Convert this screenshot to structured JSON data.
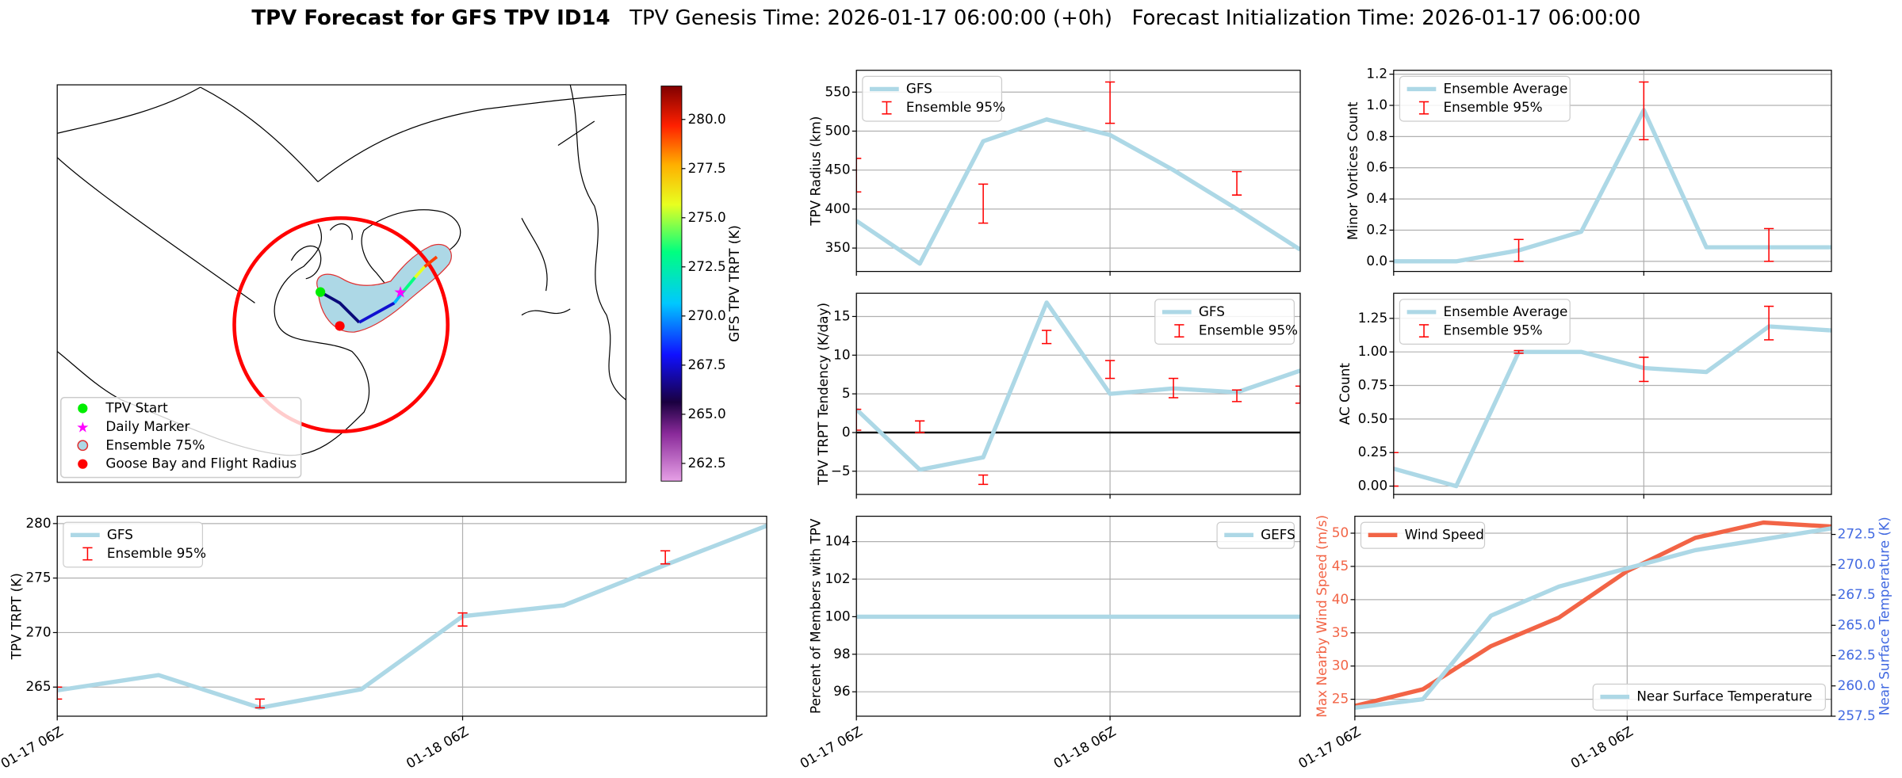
{
  "title": "TPV Forecast for GFS TPV ID14",
  "genesis_time": "TPV Genesis Time: 2026-01-17 06:00:00 (+0h)",
  "init_time": "Forecast Initialization Time: 2026-01-17 06:00:00",
  "chart_data": [
    {
      "type": "map",
      "colorbar_label": "GFS TPV TRPT (K)",
      "clim": [
        261.6,
        281.7
      ],
      "cticks": [
        262.5,
        {
          "value": 265,
          "label": "265.0"
        },
        267.5,
        {
          "value": 270,
          "label": "270.0"
        },
        272.5,
        {
          "value": 275,
          "label": "275.0"
        },
        277.5,
        {
          "value": 280,
          "label": "280.0"
        }
      ],
      "legend": "lower left",
      "legend_entries": [
        {
          "name": "TPV Start",
          "marker": "circle",
          "color": "#00ee00"
        },
        {
          "name": "Daily Marker",
          "marker": "star",
          "color": "#ff00ff"
        },
        {
          "name": "Ensemble 75%",
          "marker": "circle",
          "color": "#add8e6",
          "edge": "#e03030"
        },
        {
          "name": "Goose Bay and Flight Radius",
          "marker": "circle",
          "color": "#ff0000"
        }
      ]
    },
    {
      "type": "line",
      "ylabel": "TPV Radius (km)",
      "x": [
        "01-17 06Z",
        "01-17 12Z",
        "01-17 18Z",
        "01-18 00Z",
        "01-18 06Z",
        "01-18 12Z",
        "01-18 18Z",
        "01-19 00Z"
      ],
      "xlim": [
        "01-17 06Z",
        "01-19 00Z"
      ],
      "xticks": [
        "01-17 06Z",
        "01-18 06Z"
      ],
      "xticklabels": false,
      "ylim": [
        320,
        578
      ],
      "yticks": [
        350,
        400,
        450,
        500,
        550
      ],
      "grid": true,
      "legend": "upper left",
      "series": [
        {
          "name": "GFS",
          "type": "line",
          "color": "#add8e6",
          "values": [
            385,
            330,
            487,
            515,
            495,
            450,
            400,
            348
          ]
        },
        {
          "name": "Ensemble 95%",
          "type": "errorbar",
          "color": "#ff0000",
          "lower": [
            422,
            null,
            382,
            null,
            510,
            null,
            418,
            null
          ],
          "upper": [
            465,
            null,
            432,
            null,
            563,
            null,
            448,
            null
          ]
        }
      ]
    },
    {
      "type": "line",
      "ylabel": "Minor Vortices Count",
      "x": [
        "01-17 06Z",
        "01-17 12Z",
        "01-17 18Z",
        "01-18 00Z",
        "01-18 06Z",
        "01-18 12Z",
        "01-18 18Z",
        "01-19 00Z"
      ],
      "xlim": [
        "01-17 06Z",
        "01-19 00Z"
      ],
      "xticks": [
        "01-17 06Z",
        "01-18 06Z"
      ],
      "xticklabels": false,
      "ylim": [
        -0.065,
        1.225
      ],
      "yticks": [
        {
          "value": 0,
          "label": "0.0"
        },
        0.2,
        0.4,
        0.6,
        0.8,
        {
          "value": 1,
          "label": "1.0"
        },
        1.2
      ],
      "grid": true,
      "legend": "upper left",
      "series": [
        {
          "name": "Ensemble Average",
          "type": "line",
          "color": "#add8e6",
          "values": [
            0,
            0,
            0.07,
            0.19,
            0.97,
            0.09,
            0.09,
            0.09
          ]
        },
        {
          "name": "Ensemble 95%",
          "type": "errorbar",
          "color": "#ff0000",
          "lower": [
            null,
            null,
            0,
            null,
            0.78,
            null,
            0,
            null
          ],
          "upper": [
            null,
            null,
            0.14,
            null,
            1.15,
            null,
            0.21,
            null
          ]
        }
      ]
    },
    {
      "type": "line",
      "ylabel": "TPV TRPT Tendency (K/day)",
      "x": [
        "01-17 06Z",
        "01-17 12Z",
        "01-17 18Z",
        "01-18 00Z",
        "01-18 06Z",
        "01-18 12Z",
        "01-18 18Z",
        "01-19 00Z"
      ],
      "xlim": [
        "01-17 06Z",
        "01-19 00Z"
      ],
      "xticks": [
        "01-17 06Z",
        "01-18 06Z"
      ],
      "xticklabels": false,
      "ylim": [
        -8,
        18
      ],
      "yticks": [
        {
          "value": -5,
          "label": "−5"
        },
        0,
        5,
        10,
        15
      ],
      "grid": true,
      "legend": "upper right",
      "hline": 0,
      "hline_color": "#000000",
      "series": [
        {
          "name": "GFS",
          "type": "line",
          "color": "#add8e6",
          "values": [
            3.0,
            -4.8,
            -3.2,
            16.8,
            5.0,
            5.7,
            5.2,
            8.0
          ]
        },
        {
          "name": "Ensemble 95%",
          "type": "errorbar",
          "color": "#ff0000",
          "lower": [
            0.3,
            0.0,
            -6.7,
            11.5,
            7.0,
            4.5,
            4.0,
            3.8
          ],
          "upper": [
            3.0,
            1.5,
            -5.5,
            13.2,
            9.3,
            7.0,
            5.5,
            6.0
          ]
        }
      ]
    },
    {
      "type": "line",
      "ylabel": "AC Count",
      "x": [
        "01-17 06Z",
        "01-17 12Z",
        "01-17 18Z",
        "01-18 00Z",
        "01-18 06Z",
        "01-18 12Z",
        "01-18 18Z",
        "01-19 00Z"
      ],
      "xlim": [
        "01-17 06Z",
        "01-19 00Z"
      ],
      "xticks": [
        "01-17 06Z",
        "01-18 06Z"
      ],
      "xticklabels": false,
      "ylim": [
        -0.062,
        1.437
      ],
      "yticks": [
        {
          "value": 0,
          "label": "0.00"
        },
        0.25,
        {
          "value": 0.5,
          "label": "0.50"
        },
        0.75,
        {
          "value": 1,
          "label": "1.00"
        },
        1.25
      ],
      "grid": true,
      "legend": "upper left",
      "series": [
        {
          "name": "Ensemble Average",
          "type": "line",
          "color": "#add8e6",
          "values": [
            0.13,
            0,
            1.0,
            1.0,
            0.88,
            0.85,
            1.19,
            1.16
          ]
        },
        {
          "name": "Ensemble 95%",
          "type": "errorbar",
          "color": "#ff0000",
          "lower": [
            0,
            null,
            0.99,
            null,
            0.78,
            null,
            1.09,
            null
          ],
          "upper": [
            0.25,
            null,
            1.01,
            null,
            0.96,
            null,
            1.34,
            null
          ]
        }
      ]
    },
    {
      "type": "line",
      "ylabel": "TPV TRPT (K)",
      "x": [
        "01-17 06Z",
        "01-17 12Z",
        "01-17 18Z",
        "01-18 00Z",
        "01-18 06Z",
        "01-18 12Z",
        "01-18 18Z",
        "01-19 00Z"
      ],
      "xlim": [
        "01-17 06Z",
        "01-19 00Z"
      ],
      "xticks": [
        "01-17 06Z",
        "01-18 06Z"
      ],
      "xticklabels": true,
      "ylim": [
        262.33,
        280.67
      ],
      "yticks": [
        265,
        270,
        275,
        280
      ],
      "grid": true,
      "legend": "upper left",
      "series": [
        {
          "name": "GFS",
          "type": "line",
          "color": "#add8e6",
          "values": [
            264.7,
            266.1,
            263.1,
            264.8,
            271.5,
            272.5,
            276.2,
            279.8
          ]
        },
        {
          "name": "Ensemble 95%",
          "type": "errorbar",
          "color": "#ff0000",
          "lower": [
            263.9,
            null,
            263.1,
            null,
            270.6,
            null,
            276.3,
            null
          ],
          "upper": [
            265.0,
            null,
            263.9,
            null,
            271.8,
            null,
            277.5,
            null
          ]
        }
      ]
    },
    {
      "type": "line",
      "ylabel": "Percent of Members with TPV",
      "x": [
        "01-17 06Z",
        "01-17 12Z",
        "01-17 18Z",
        "01-18 00Z",
        "01-18 06Z",
        "01-18 12Z",
        "01-18 18Z",
        "01-19 00Z"
      ],
      "xlim": [
        "01-17 06Z",
        "01-19 00Z"
      ],
      "xticks": [
        "01-17 06Z",
        "01-18 06Z"
      ],
      "xticklabels": true,
      "ylim": [
        94.7,
        105.35
      ],
      "yticks": [
        96,
        98,
        100,
        102,
        104
      ],
      "grid": true,
      "legend": "upper right",
      "series": [
        {
          "name": "GEFS",
          "type": "line",
          "color": "#add8e6",
          "values": [
            100,
            100,
            100,
            100,
            100,
            100,
            100,
            100
          ]
        }
      ]
    },
    {
      "type": "line",
      "ylabel": "Max Nearby Wind Speed (m/s)",
      "ylabel_color": "#f26446",
      "y2label": "Near Surface Temperature (K)",
      "y2label_color": "#4169e1",
      "x": [
        "01-17 06Z",
        "01-17 12Z",
        "01-17 18Z",
        "01-18 00Z",
        "01-18 06Z",
        "01-18 12Z",
        "01-18 18Z",
        "01-19 00Z"
      ],
      "xlim": [
        "01-17 06Z",
        "01-19 00Z"
      ],
      "xticks": [
        "01-17 06Z",
        "01-18 06Z"
      ],
      "xticklabels": true,
      "ylim": [
        22.45,
        52.55
      ],
      "yticks": [
        25,
        30,
        35,
        40,
        45,
        50
      ],
      "y2lim": [
        257.5,
        274.0
      ],
      "y2ticks": [
        257.5,
        {
          "value": 260,
          "label": "260.0"
        },
        262.5,
        {
          "value": 265,
          "label": "265.0"
        },
        267.5,
        {
          "value": 270,
          "label": "270.0"
        },
        272.5
      ],
      "grid": true,
      "series": [
        {
          "name": "Wind Speed",
          "type": "line",
          "color": "#f26446",
          "legend": "upper left",
          "values": [
            24,
            26.5,
            33,
            37.3,
            44.3,
            49.3,
            51.6,
            51.0
          ]
        },
        {
          "name": "Near Surface Temperature",
          "type": "line",
          "axis": "y2",
          "color": "#add8e6",
          "legend": "lower right",
          "values": [
            258.2,
            258.9,
            265.8,
            268.2,
            269.7,
            271.2,
            272.1,
            273.0
          ]
        }
      ]
    }
  ]
}
